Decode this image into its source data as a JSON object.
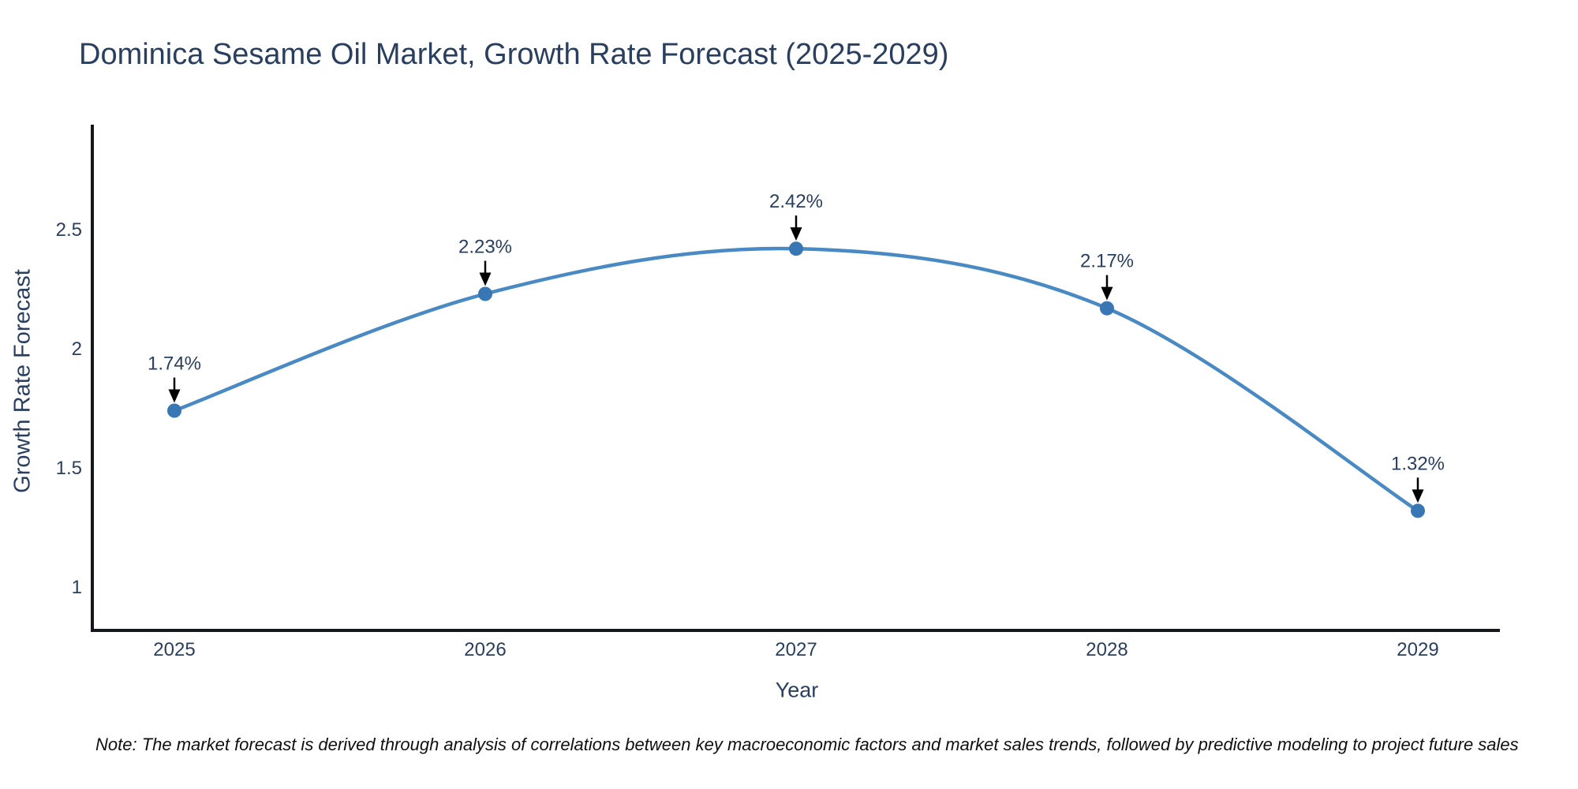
{
  "chart_data": {
    "type": "line",
    "title": "Dominica Sesame Oil Market, Growth Rate Forecast (2025-2029)",
    "xlabel": "Year",
    "ylabel": "Growth Rate Forecast",
    "categories": [
      "2025",
      "2026",
      "2027",
      "2028",
      "2029"
    ],
    "values": [
      1.74,
      2.23,
      2.42,
      2.17,
      1.32
    ],
    "point_labels": [
      "1.74%",
      "2.23%",
      "2.42%",
      "2.17%",
      "1.32%"
    ],
    "y_tick_labels": [
      "2.5",
      "2",
      "1.5",
      "1"
    ],
    "ylim": [
      0.81,
      2.94
    ],
    "line_shape": "spline",
    "grid": false,
    "legend": "none",
    "colors": {
      "line": "#4a8ac4",
      "marker": "#3876b4",
      "axis": "#14181c",
      "text": "#2a3f5f",
      "arrow": "#000000"
    }
  },
  "footnote": "Note: The market forecast is derived through analysis of correlations between key macroeconomic factors and market sales trends, followed by predictive modeling to project future sales"
}
